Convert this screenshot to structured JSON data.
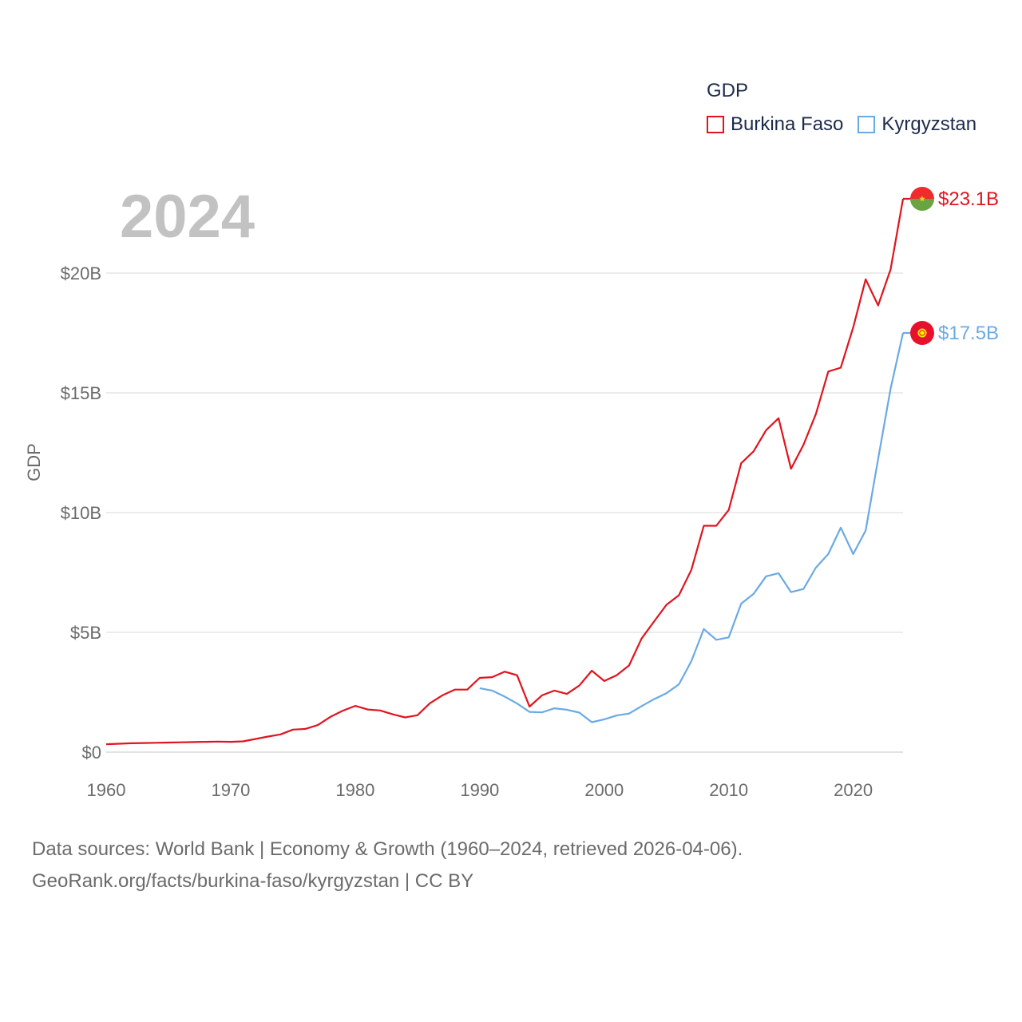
{
  "legend": {
    "title": "GDP",
    "items": [
      {
        "label": "Burkina Faso",
        "color": "#e0141e"
      },
      {
        "label": "Kyrgyzstan",
        "color": "#6aaae4"
      }
    ]
  },
  "year_label": "2024",
  "footer": {
    "line1": "Data sources: World Bank | Economy & Growth (1960–2024, retrieved 2026-04-06).",
    "line2": "GeoRank.org/facts/burkina-faso/kyrgyzstan | CC BY"
  },
  "chart_data": {
    "type": "line",
    "title": "GDP",
    "xlabel": "",
    "ylabel": "GDP",
    "xlim": [
      1960,
      2024
    ],
    "ylim": [
      0,
      23.1
    ],
    "x_ticks": [
      1960,
      1970,
      1980,
      1990,
      2000,
      2010,
      2020
    ],
    "x_tick_labels": [
      "1960",
      "1970",
      "1980",
      "1990",
      "2000",
      "2010",
      "2020"
    ],
    "y_ticks": [
      0,
      5,
      10,
      15,
      20
    ],
    "y_tick_labels": [
      "$0",
      "$5B",
      "$10B",
      "$15B",
      "$20B"
    ],
    "grid": true,
    "series": [
      {
        "name": "Burkina Faso",
        "color": "#e0141e",
        "end_label": "$23.1B",
        "x": [
          1960,
          1961,
          1962,
          1963,
          1964,
          1965,
          1966,
          1967,
          1968,
          1969,
          1970,
          1971,
          1972,
          1973,
          1974,
          1975,
          1976,
          1977,
          1978,
          1979,
          1980,
          1981,
          1982,
          1983,
          1984,
          1985,
          1986,
          1987,
          1988,
          1989,
          1990,
          1991,
          1992,
          1993,
          1994,
          1995,
          1996,
          1997,
          1998,
          1999,
          2000,
          2001,
          2002,
          2003,
          2004,
          2005,
          2006,
          2007,
          2008,
          2009,
          2010,
          2011,
          2012,
          2013,
          2014,
          2015,
          2016,
          2017,
          2018,
          2019,
          2020,
          2021,
          2022,
          2023,
          2024
        ],
        "values": [
          0.33,
          0.35,
          0.37,
          0.38,
          0.39,
          0.4,
          0.41,
          0.42,
          0.43,
          0.44,
          0.43,
          0.45,
          0.55,
          0.65,
          0.74,
          0.94,
          0.97,
          1.13,
          1.47,
          1.73,
          1.93,
          1.78,
          1.74,
          1.58,
          1.45,
          1.54,
          2.04,
          2.37,
          2.61,
          2.61,
          3.1,
          3.13,
          3.36,
          3.21,
          1.9,
          2.37,
          2.57,
          2.43,
          2.78,
          3.4,
          2.97,
          3.21,
          3.62,
          4.74,
          5.45,
          6.15,
          6.55,
          7.61,
          9.45,
          9.45,
          10.11,
          12.06,
          12.56,
          13.44,
          13.94,
          11.83,
          12.83,
          14.11,
          15.89,
          16.05,
          17.73,
          19.74,
          18.65,
          20.15,
          23.1
        ]
      },
      {
        "name": "Kyrgyzstan",
        "color": "#6aaae4",
        "end_label": "$17.5B",
        "x": [
          1990,
          1991,
          1992,
          1993,
          1994,
          1995,
          1996,
          1997,
          1998,
          1999,
          2000,
          2001,
          2002,
          2003,
          2004,
          2005,
          2006,
          2007,
          2008,
          2009,
          2010,
          2011,
          2012,
          2013,
          2014,
          2015,
          2016,
          2017,
          2018,
          2019,
          2020,
          2021,
          2022,
          2023,
          2024
        ],
        "values": [
          2.67,
          2.57,
          2.32,
          2.03,
          1.68,
          1.66,
          1.83,
          1.77,
          1.65,
          1.25,
          1.37,
          1.53,
          1.61,
          1.92,
          2.21,
          2.46,
          2.83,
          3.8,
          5.14,
          4.69,
          4.79,
          6.2,
          6.61,
          7.34,
          7.47,
          6.68,
          6.81,
          7.7,
          8.27,
          9.37,
          8.27,
          9.25,
          12.24,
          15.17,
          17.5
        ]
      }
    ]
  }
}
